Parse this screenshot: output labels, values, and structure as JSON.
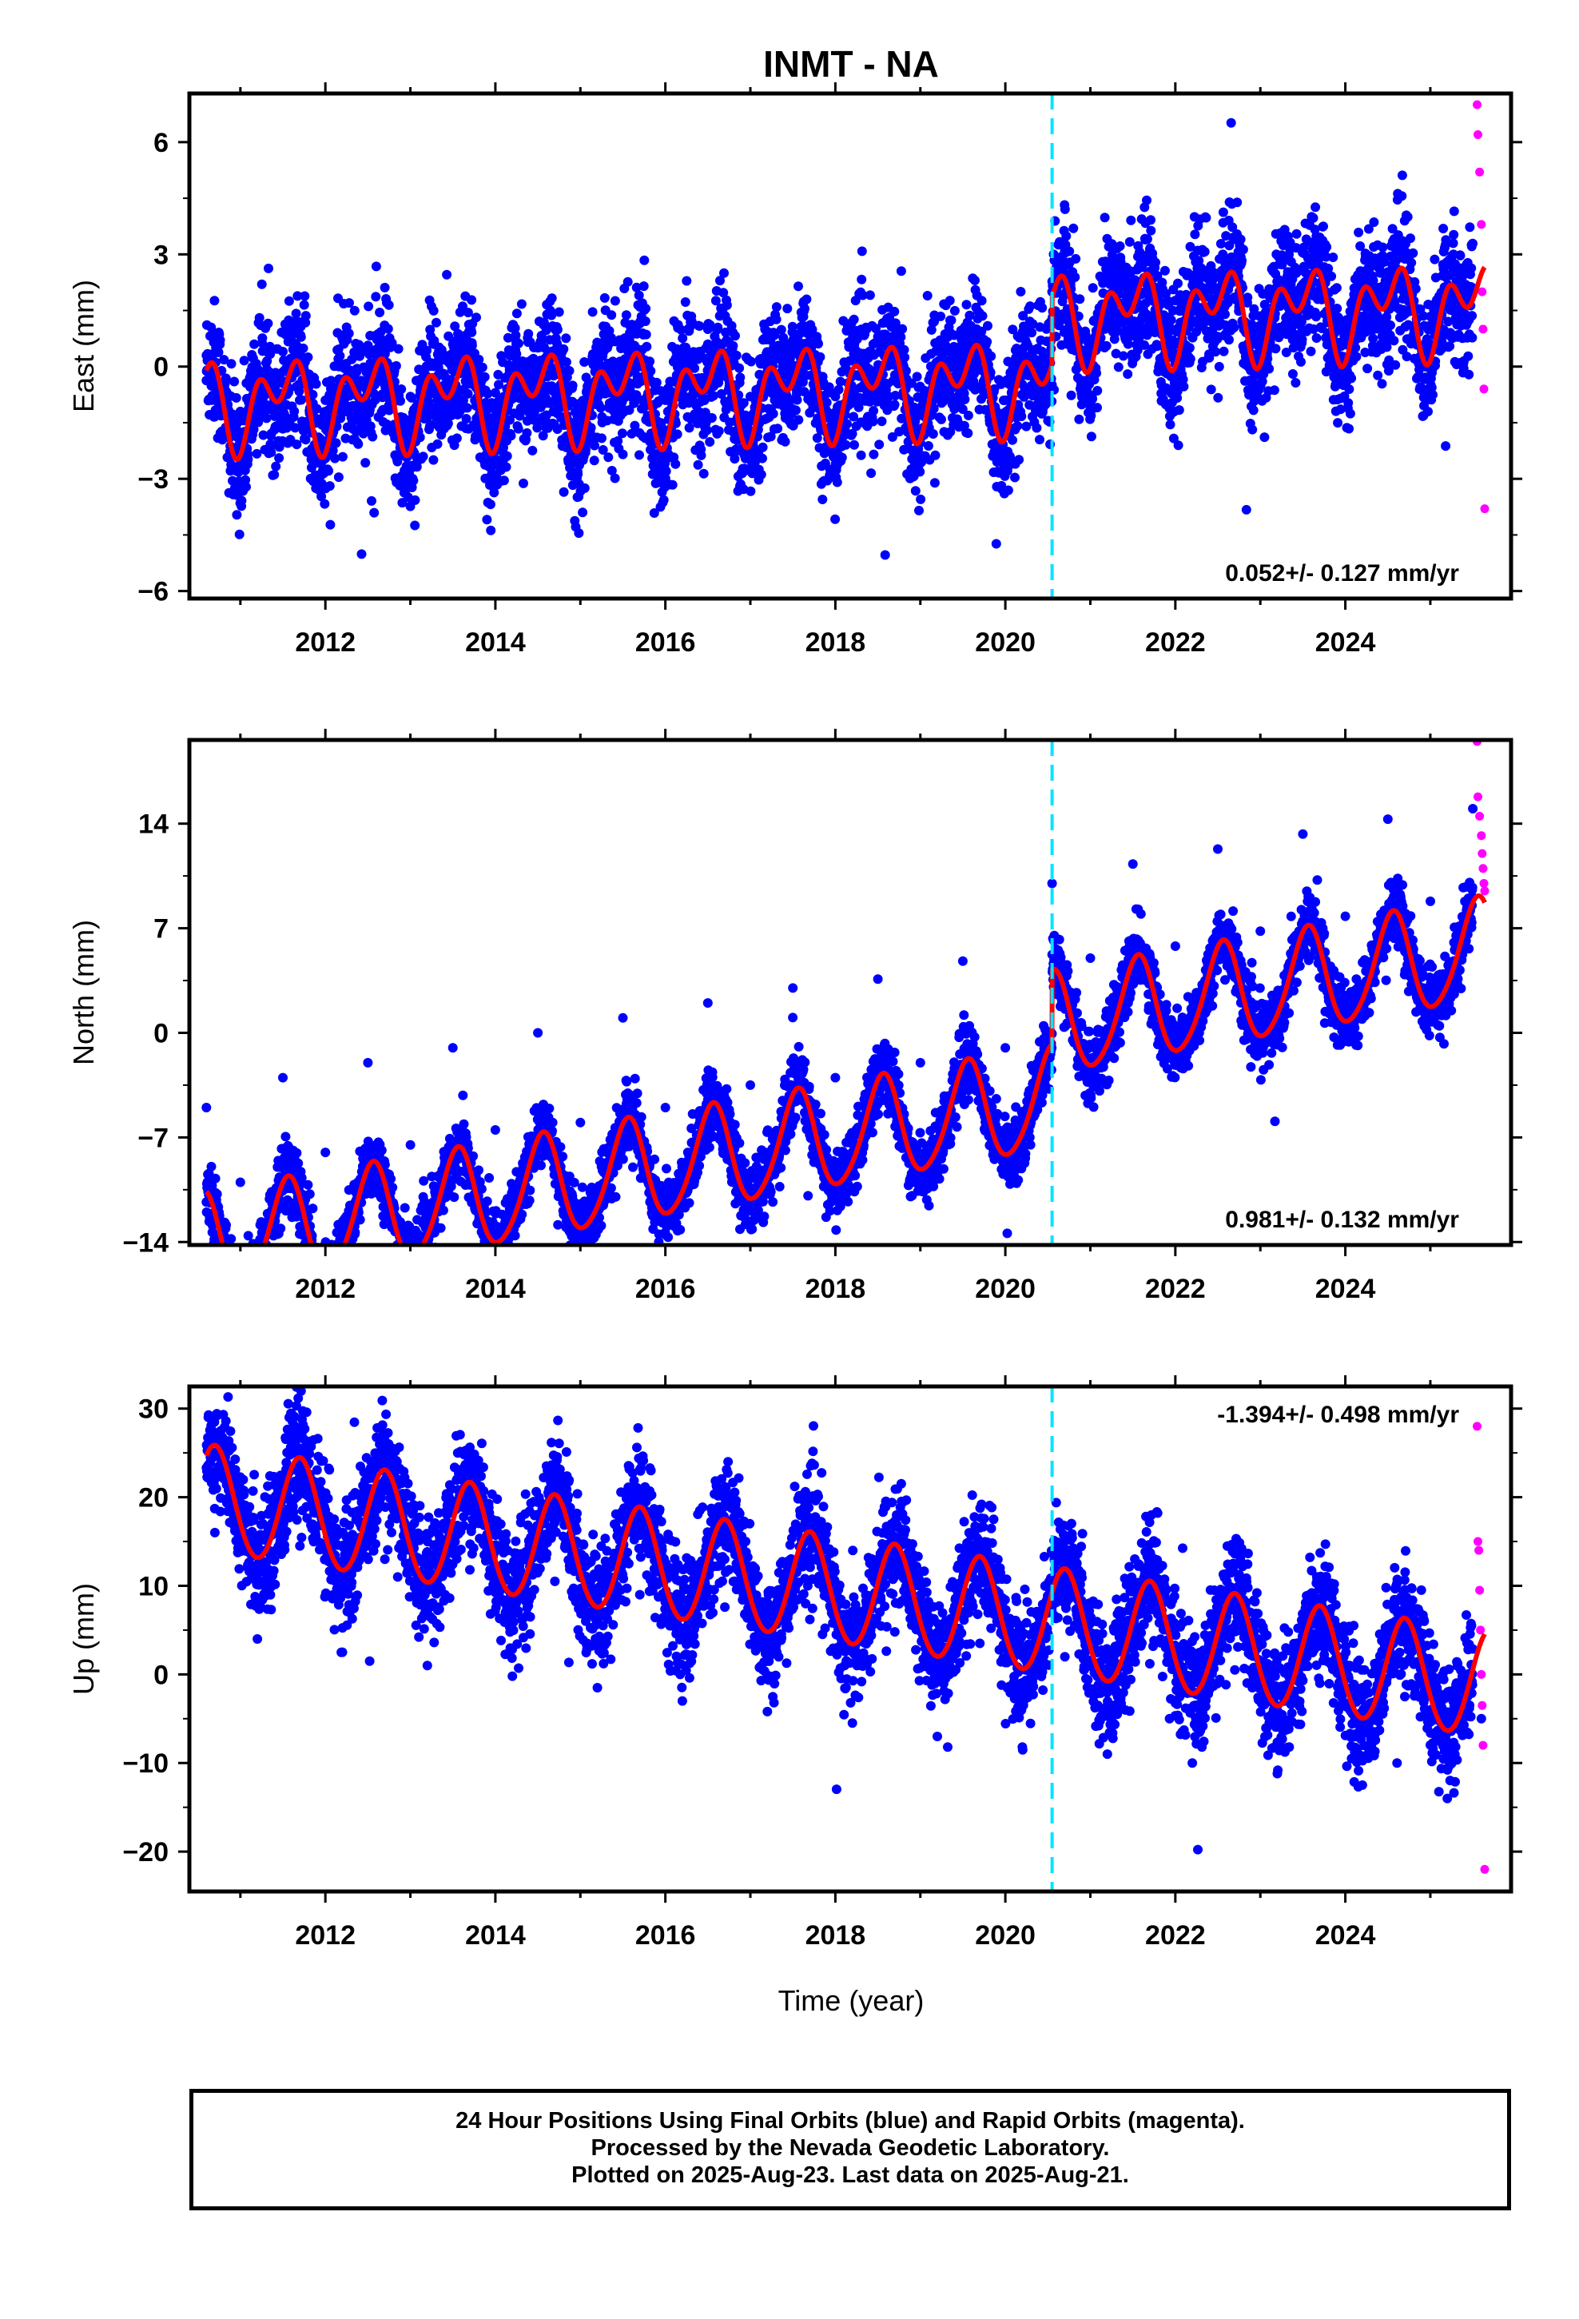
{
  "title": "INMT - NA",
  "xlabel": "Time (year)",
  "footer": {
    "line1": "24 Hour Positions Using Final Orbits (blue) and Rapid Orbits (magenta).",
    "line2": "Processed by the Nevada Geodetic Laboratory.",
    "line3": "Plotted on 2025-Aug-23. Last data on 2025-Aug-21."
  },
  "colors": {
    "final_orbits": "#0000ff",
    "rapid_orbits": "#ff00ff",
    "model_fit": "#ff0000",
    "equipment_change": "#00e5ff"
  },
  "chart_data": [
    {
      "type": "scatter",
      "ylabel": "East (mm)",
      "xlim": [
        2010.4,
        2025.95
      ],
      "ylim": [
        -6.2,
        7.3
      ],
      "xticks": [
        2012,
        2014,
        2016,
        2018,
        2020,
        2022,
        2024
      ],
      "yticks": [
        -6,
        -3,
        0,
        3,
        6
      ],
      "ytick_labels": [
        "−6",
        "−3",
        "0",
        "3",
        "6"
      ],
      "rate_text": "0.052+/- 0.127 mm/yr",
      "rate_position": "bottom-right",
      "equipment_change_year": 2020.55,
      "data_start_year": 2010.6,
      "rapid_start_year": 2025.5,
      "data_end_year": 2025.64,
      "offsets": [
        {
          "year": 2020.55,
          "value": 1.8
        }
      ],
      "model": {
        "intercept": -0.6,
        "rate": 0.052,
        "annual_amp": 0.8,
        "annual_peak_year_fraction": 0.5,
        "semiannual_amp": 0.75,
        "semiannual_peak_year_fraction": 0.2
      },
      "scatter_sd": 0.85,
      "series": [
        {
          "name": "Final Orbits",
          "points": [
            [
              2010.6,
              0.3
            ],
            [
              2011.0,
              -1.2
            ],
            [
              2011.5,
              0.4
            ],
            [
              2012.0,
              -0.9
            ],
            [
              2012.5,
              0.5
            ],
            [
              2013.0,
              -0.8
            ],
            [
              2013.5,
              0.6
            ],
            [
              2014.0,
              -0.7
            ],
            [
              2014.5,
              0.5
            ],
            [
              2015.0,
              -1.5
            ],
            [
              2015.5,
              0.6
            ],
            [
              2016.0,
              -0.9
            ],
            [
              2016.5,
              0.6
            ],
            [
              2017.0,
              -0.8
            ],
            [
              2017.5,
              0.7
            ],
            [
              2018.0,
              -0.8
            ],
            [
              2018.5,
              0.8
            ],
            [
              2019.0,
              -1.3
            ],
            [
              2019.5,
              0.8
            ],
            [
              2020.0,
              -0.9
            ],
            [
              2020.55,
              2.0
            ],
            [
              2021.0,
              0.5
            ],
            [
              2021.5,
              2.2
            ],
            [
              2022.0,
              0.6
            ],
            [
              2022.5,
              2.1
            ],
            [
              2023.0,
              1.0
            ],
            [
              2023.5,
              2.2
            ],
            [
              2024.0,
              1.2
            ],
            [
              2024.5,
              2.3
            ],
            [
              2025.0,
              1.1
            ],
            [
              2025.5,
              2.1
            ]
          ]
        },
        {
          "name": "Rapid Orbits",
          "points": [
            [
              2025.55,
              7.0
            ],
            [
              2025.56,
              6.2
            ],
            [
              2025.58,
              5.2
            ],
            [
              2025.6,
              3.8
            ],
            [
              2025.61,
              2.0
            ],
            [
              2025.62,
              1.0
            ],
            [
              2025.63,
              -0.6
            ],
            [
              2025.64,
              -3.8
            ]
          ]
        }
      ]
    },
    {
      "type": "scatter",
      "ylabel": "North (mm)",
      "xlim": [
        2010.4,
        2025.95
      ],
      "ylim": [
        -14.2,
        19.6
      ],
      "xticks": [
        2012,
        2014,
        2016,
        2018,
        2020,
        2022,
        2024
      ],
      "yticks": [
        -14,
        -7,
        0,
        7,
        14
      ],
      "ytick_labels": [
        "−14",
        "−7",
        "0",
        "7",
        "14"
      ],
      "rate_text": "0.981+/- 0.132 mm/yr",
      "rate_position": "bottom-right",
      "equipment_change_year": 2020.55,
      "data_start_year": 2010.6,
      "rapid_start_year": 2025.5,
      "data_end_year": 2025.64,
      "offsets": [
        {
          "year": 2020.55,
          "value": 5.0
        }
      ],
      "model": {
        "intercept": -7.0,
        "rate": 0.981,
        "annual_amp": 3.4,
        "annual_peak_year_fraction": 0.55,
        "semiannual_amp": 0.4,
        "semiannual_peak_year_fraction": 0.1
      },
      "scatter_sd": 1.1,
      "series": [
        {
          "name": "Final Orbits",
          "points": [
            [
              2010.6,
              -5.0
            ],
            [
              2011.0,
              -10.0
            ],
            [
              2011.5,
              -3.0
            ],
            [
              2012.0,
              -8.0
            ],
            [
              2012.5,
              -2.0
            ],
            [
              2013.0,
              -7.5
            ],
            [
              2013.5,
              -1.0
            ],
            [
              2014.0,
              -6.5
            ],
            [
              2014.5,
              0.0
            ],
            [
              2015.0,
              -6.0
            ],
            [
              2015.5,
              1.0
            ],
            [
              2016.0,
              -5.0
            ],
            [
              2016.5,
              2.0
            ],
            [
              2017.0,
              -3.5
            ],
            [
              2017.5,
              3.0
            ],
            [
              2018.0,
              -3.0
            ],
            [
              2018.5,
              3.6
            ],
            [
              2019.0,
              -2.0
            ],
            [
              2019.5,
              4.8
            ],
            [
              2020.0,
              -1.0
            ],
            [
              2020.55,
              10.0
            ],
            [
              2021.0,
              5.0
            ],
            [
              2021.5,
              11.3
            ],
            [
              2022.0,
              5.8
            ],
            [
              2022.5,
              12.3
            ],
            [
              2023.0,
              6.8
            ],
            [
              2023.5,
              13.3
            ],
            [
              2024.0,
              7.8
            ],
            [
              2024.5,
              14.3
            ],
            [
              2025.0,
              8.8
            ],
            [
              2025.5,
              15.0
            ]
          ]
        },
        {
          "name": "Rapid Orbits",
          "points": [
            [
              2025.55,
              19.5
            ],
            [
              2025.56,
              15.8
            ],
            [
              2025.58,
              14.5
            ],
            [
              2025.6,
              13.2
            ],
            [
              2025.61,
              12.0
            ],
            [
              2025.62,
              11.0
            ],
            [
              2025.63,
              10.0
            ],
            [
              2025.64,
              9.5
            ]
          ]
        }
      ]
    },
    {
      "type": "scatter",
      "ylabel": "Up (mm)",
      "xlim": [
        2010.4,
        2025.95
      ],
      "ylim": [
        -24.5,
        32.5
      ],
      "xticks": [
        2012,
        2014,
        2016,
        2018,
        2020,
        2022,
        2024
      ],
      "yticks": [
        -20,
        -10,
        0,
        10,
        20,
        30
      ],
      "ytick_labels": [
        "−20",
        "−10",
        "0",
        "10",
        "20",
        "30"
      ],
      "rate_text": "-1.394+/- 0.498 mm/yr",
      "rate_position": "top-right",
      "equipment_change_year": 2020.55,
      "data_start_year": 2010.6,
      "rapid_start_year": 2025.5,
      "data_end_year": 2025.64,
      "offsets": [],
      "model": {
        "intercept": 9.4,
        "rate": -1.394,
        "annual_amp": 6.0,
        "annual_peak_year_fraction": 0.7,
        "semiannual_amp": 0.3,
        "semiannual_peak_year_fraction": 0.2
      },
      "scatter_sd": 3.2,
      "series": [
        {
          "name": "Final Orbits",
          "points": [
            [
              2010.7,
              16.0
            ],
            [
              2011.2,
              4.0
            ],
            [
              2011.7,
              14.5
            ],
            [
              2012.2,
              2.5
            ],
            [
              2012.7,
              13.0
            ],
            [
              2013.2,
              1.0
            ],
            [
              2013.7,
              11.8
            ],
            [
              2014.2,
              -0.2
            ],
            [
              2014.7,
              10.5
            ],
            [
              2015.2,
              -1.5
            ],
            [
              2015.7,
              9.0
            ],
            [
              2016.2,
              -3.0
            ],
            [
              2016.7,
              7.6
            ],
            [
              2017.2,
              -4.2
            ],
            [
              2017.7,
              6.2
            ],
            [
              2018.2,
              -5.5
            ],
            [
              2018.7,
              4.8
            ],
            [
              2019.2,
              -7.0
            ],
            [
              2019.7,
              3.5
            ],
            [
              2020.2,
              -8.2
            ],
            [
              2020.7,
              2.0
            ],
            [
              2021.2,
              -9.0
            ],
            [
              2021.7,
              1.2
            ],
            [
              2022.2,
              -10.0
            ],
            [
              2022.7,
              0.5
            ],
            [
              2023.2,
              -11.2
            ],
            [
              2023.7,
              -1.0
            ],
            [
              2024.2,
              -12.5
            ],
            [
              2024.7,
              -2.5
            ],
            [
              2025.2,
              -14.0
            ],
            [
              2025.6,
              -5.0
            ]
          ]
        },
        {
          "name": "Rapid Orbits",
          "points": [
            [
              2025.55,
              28.0
            ],
            [
              2025.56,
              15.0
            ],
            [
              2025.57,
              14.0
            ],
            [
              2025.58,
              9.5
            ],
            [
              2025.59,
              5.0
            ],
            [
              2025.6,
              0.0
            ],
            [
              2025.61,
              -3.5
            ],
            [
              2025.62,
              -8.0
            ],
            [
              2025.64,
              -22.0
            ]
          ]
        }
      ]
    }
  ]
}
